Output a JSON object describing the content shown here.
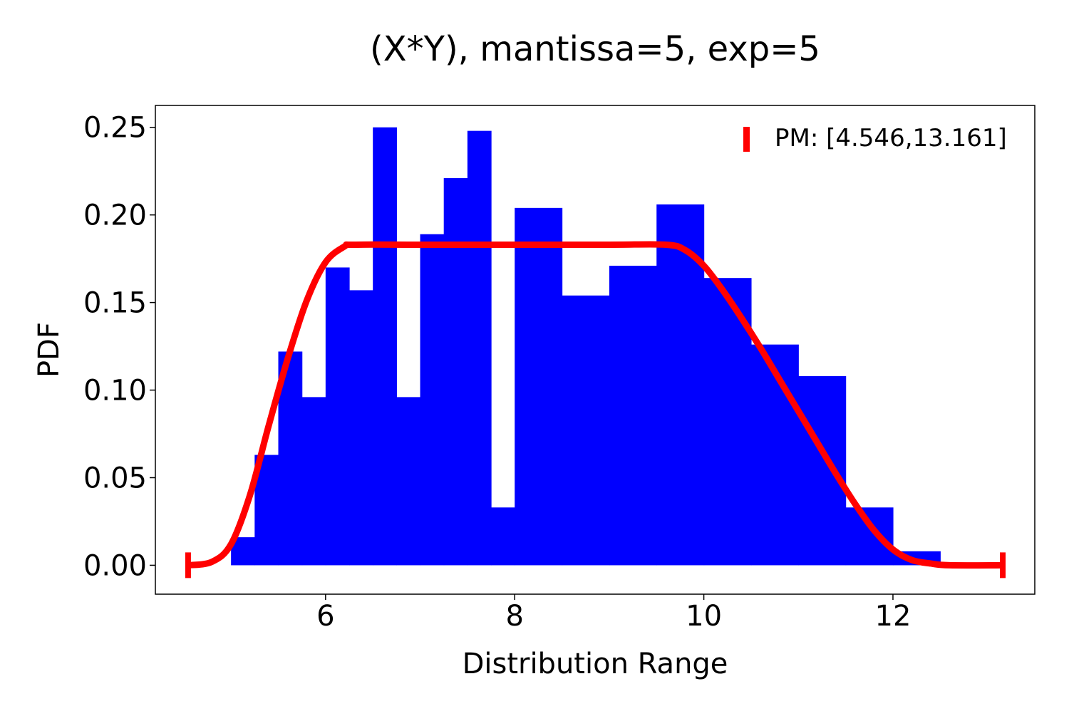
{
  "chart_data": {
    "type": "bar",
    "title": "(X*Y), mantissa=5, exp=5",
    "xlabel": "Distribution Range",
    "ylabel": "PDF",
    "xlim": [
      4.2,
      13.5
    ],
    "ylim": [
      -0.0165,
      0.2625
    ],
    "xticks": [
      {
        "value": 6,
        "label": "6"
      },
      {
        "value": 8,
        "label": "8"
      },
      {
        "value": 10,
        "label": "10"
      },
      {
        "value": 12,
        "label": "12"
      }
    ],
    "yticks": [
      {
        "value": 0.0,
        "label": "0.00"
      },
      {
        "value": 0.05,
        "label": "0.05"
      },
      {
        "value": 0.1,
        "label": "0.10"
      },
      {
        "value": 0.15,
        "label": "0.15"
      },
      {
        "value": 0.2,
        "label": "0.20"
      },
      {
        "value": 0.25,
        "label": "0.25"
      }
    ],
    "grid": false,
    "legend_position": "top-right",
    "colors": {
      "bars": "#0000ff",
      "curve": "#ff0000"
    },
    "histogram": {
      "bins": [
        {
          "x0": 5.0,
          "x1": 5.25,
          "value": 0.016
        },
        {
          "x0": 5.25,
          "x1": 5.5,
          "value": 0.063
        },
        {
          "x0": 5.5,
          "x1": 5.75,
          "value": 0.122
        },
        {
          "x0": 5.75,
          "x1": 6.0,
          "value": 0.096
        },
        {
          "x0": 6.0,
          "x1": 6.25,
          "value": 0.17
        },
        {
          "x0": 6.25,
          "x1": 6.5,
          "value": 0.157
        },
        {
          "x0": 6.5,
          "x1": 6.75,
          "value": 0.25
        },
        {
          "x0": 6.75,
          "x1": 7.0,
          "value": 0.096
        },
        {
          "x0": 7.0,
          "x1": 7.25,
          "value": 0.189
        },
        {
          "x0": 7.25,
          "x1": 7.5,
          "value": 0.221
        },
        {
          "x0": 7.5,
          "x1": 7.75,
          "value": 0.248
        },
        {
          "x0": 7.75,
          "x1": 8.0,
          "value": 0.033
        },
        {
          "x0": 8.0,
          "x1": 8.5,
          "value": 0.204
        },
        {
          "x0": 8.5,
          "x1": 9.0,
          "value": 0.154
        },
        {
          "x0": 9.0,
          "x1": 9.5,
          "value": 0.171
        },
        {
          "x0": 9.5,
          "x1": 10.0,
          "value": 0.206
        },
        {
          "x0": 10.0,
          "x1": 10.5,
          "value": 0.164
        },
        {
          "x0": 10.5,
          "x1": 11.0,
          "value": 0.126
        },
        {
          "x0": 11.0,
          "x1": 11.5,
          "value": 0.108
        },
        {
          "x0": 11.5,
          "x1": 12.0,
          "value": 0.033
        },
        {
          "x0": 12.0,
          "x1": 12.5,
          "value": 0.008
        }
      ]
    },
    "pm_curve": {
      "name": "PM: [4.546,13.161]",
      "range": [
        4.546,
        13.161
      ],
      "plateau": 0.183,
      "rise": [
        4.546,
        6.3
      ],
      "plateau_end": 9.6,
      "fall_end": 12.6,
      "x": [
        4.546,
        4.8,
        5.0,
        5.2,
        5.4,
        5.6,
        5.8,
        6.0,
        6.2,
        6.3,
        7.0,
        8.0,
        9.0,
        9.6,
        9.8,
        10.0,
        10.2,
        10.4,
        10.6,
        10.8,
        11.0,
        11.2,
        11.4,
        11.6,
        11.8,
        12.0,
        12.2,
        12.4,
        12.6,
        13.161
      ],
      "y": [
        0.0,
        0.002,
        0.012,
        0.04,
        0.08,
        0.118,
        0.151,
        0.173,
        0.182,
        0.183,
        0.183,
        0.183,
        0.183,
        0.183,
        0.18,
        0.171,
        0.157,
        0.141,
        0.124,
        0.106,
        0.088,
        0.07,
        0.052,
        0.035,
        0.02,
        0.009,
        0.003,
        0.001,
        0.0,
        0.0
      ]
    }
  }
}
